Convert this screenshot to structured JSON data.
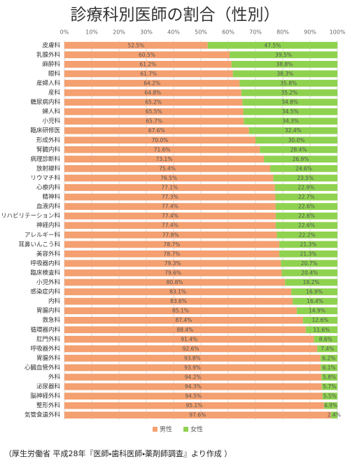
{
  "chart_data": {
    "type": "stacked_barh",
    "title": "診療科別医師の割合（性別）",
    "note": "（厚生労働省 平成28年『医師・歯科医師・薬剤師調査』より作成 ）",
    "categories": [
      "皮膚科",
      "乳腺外科",
      "麻酔科",
      "眼科",
      "産婦人科",
      "産科",
      "糖尿病内科",
      "婦人科",
      "小児科",
      "臨床研修医",
      "形成外科",
      "腎臓内科",
      "病理診断科",
      "放射線科",
      "リウマチ科",
      "心療内科",
      "精神科",
      "血液内科",
      "リハビリテーション科",
      "神経内科",
      "アレルギー科",
      "耳鼻いんこう科",
      "美容外科",
      "呼吸器内科",
      "臨床検査科",
      "小児外科",
      "感染症内科",
      "内科",
      "胃腸内科",
      "救急科",
      "循環器内科",
      "肛門外科",
      "呼吸器外科",
      "胃腸外科",
      "心臓血管外科",
      "外科",
      "泌尿器科",
      "脳神経外科",
      "整形外科",
      "気管食道外科"
    ],
    "series": [
      {
        "name": "男性",
        "color": "#f4a070",
        "values": [
          52.5,
          60.5,
          61.2,
          61.7,
          64.2,
          64.8,
          65.2,
          65.5,
          65.7,
          67.6,
          70.0,
          71.6,
          73.1,
          75.4,
          76.5,
          77.1,
          77.3,
          77.4,
          77.4,
          77.4,
          77.8,
          78.7,
          78.7,
          79.3,
          79.6,
          80.8,
          83.1,
          83.6,
          85.1,
          87.4,
          88.4,
          91.4,
          92.6,
          93.8,
          93.9,
          94.2,
          94.3,
          94.5,
          95.1,
          97.6
        ],
        "value_labels": [
          "52.5%",
          "60.5%",
          "61.2%",
          "61.7%",
          "64.2%",
          "64.8%",
          "65.2%",
          "65.5%",
          "65.7%",
          "67.6%",
          "70.0%",
          "71.6%",
          "73.1%",
          "75.4%",
          "76.5%",
          "77.1%",
          "77.3%",
          "77.4%",
          "77.4%",
          "77.4%",
          "77.8%",
          "78.7%",
          "78.7%",
          "79.3%",
          "79.6%",
          "80.8%",
          "83.1%",
          "83.6%",
          "85.1%",
          "87.4%",
          "88.4%",
          "91.4%",
          "92.6%",
          "93.8%",
          "93.9%",
          "94.2%",
          "94.3%",
          "94.5%",
          "95.1%",
          "97.6%"
        ]
      },
      {
        "name": "女性",
        "color": "#8fd24f",
        "values": [
          47.5,
          39.5,
          38.8,
          38.3,
          35.8,
          35.2,
          34.8,
          34.5,
          34.3,
          32.4,
          30.0,
          28.4,
          26.9,
          24.6,
          23.5,
          22.9,
          22.7,
          22.6,
          22.6,
          22.6,
          22.2,
          21.3,
          21.3,
          20.7,
          20.4,
          19.2,
          16.9,
          16.4,
          14.9,
          12.6,
          11.6,
          8.6,
          7.4,
          6.2,
          6.1,
          5.8,
          5.7,
          5.5,
          4.9,
          2.4
        ],
        "value_labels": [
          "47.5%",
          "39.5%",
          "38.8%",
          "38.3%",
          "35.8%",
          "35.2%",
          "34.8%",
          "34.5%",
          "34.3%",
          "32.4%",
          "30.0%",
          "28.4%",
          "26.9%",
          "24.6%",
          "23.5%",
          "22.9%",
          "22.7%",
          "22.6%",
          "22.6%",
          "22.6%",
          "22.2%",
          "21.3%",
          "21.3%",
          "20.7%",
          "20.4%",
          "19.2%",
          "16.9%",
          "16.4%",
          "14.9%",
          "12.6%",
          "11.6%",
          "8.6%",
          "7.4%",
          "6.2%",
          "6.1%",
          "5.8%",
          "5.7%",
          "5.5%",
          "4.9%",
          "2.4%"
        ]
      }
    ],
    "xlim": [
      0,
      100
    ],
    "xticks": [
      {
        "value": 0,
        "label": "0%"
      },
      {
        "value": 10,
        "label": "10%"
      },
      {
        "value": 20,
        "label": "20%"
      },
      {
        "value": 30,
        "label": "30%"
      },
      {
        "value": 40,
        "label": "40%"
      },
      {
        "value": 50,
        "label": "50%"
      },
      {
        "value": 60,
        "label": "60%"
      },
      {
        "value": 70,
        "label": "70%"
      },
      {
        "value": 80,
        "label": "80%"
      },
      {
        "value": 90,
        "label": "90%"
      },
      {
        "value": 100,
        "label": "100%"
      }
    ],
    "grid": true,
    "legend": "bottom"
  }
}
